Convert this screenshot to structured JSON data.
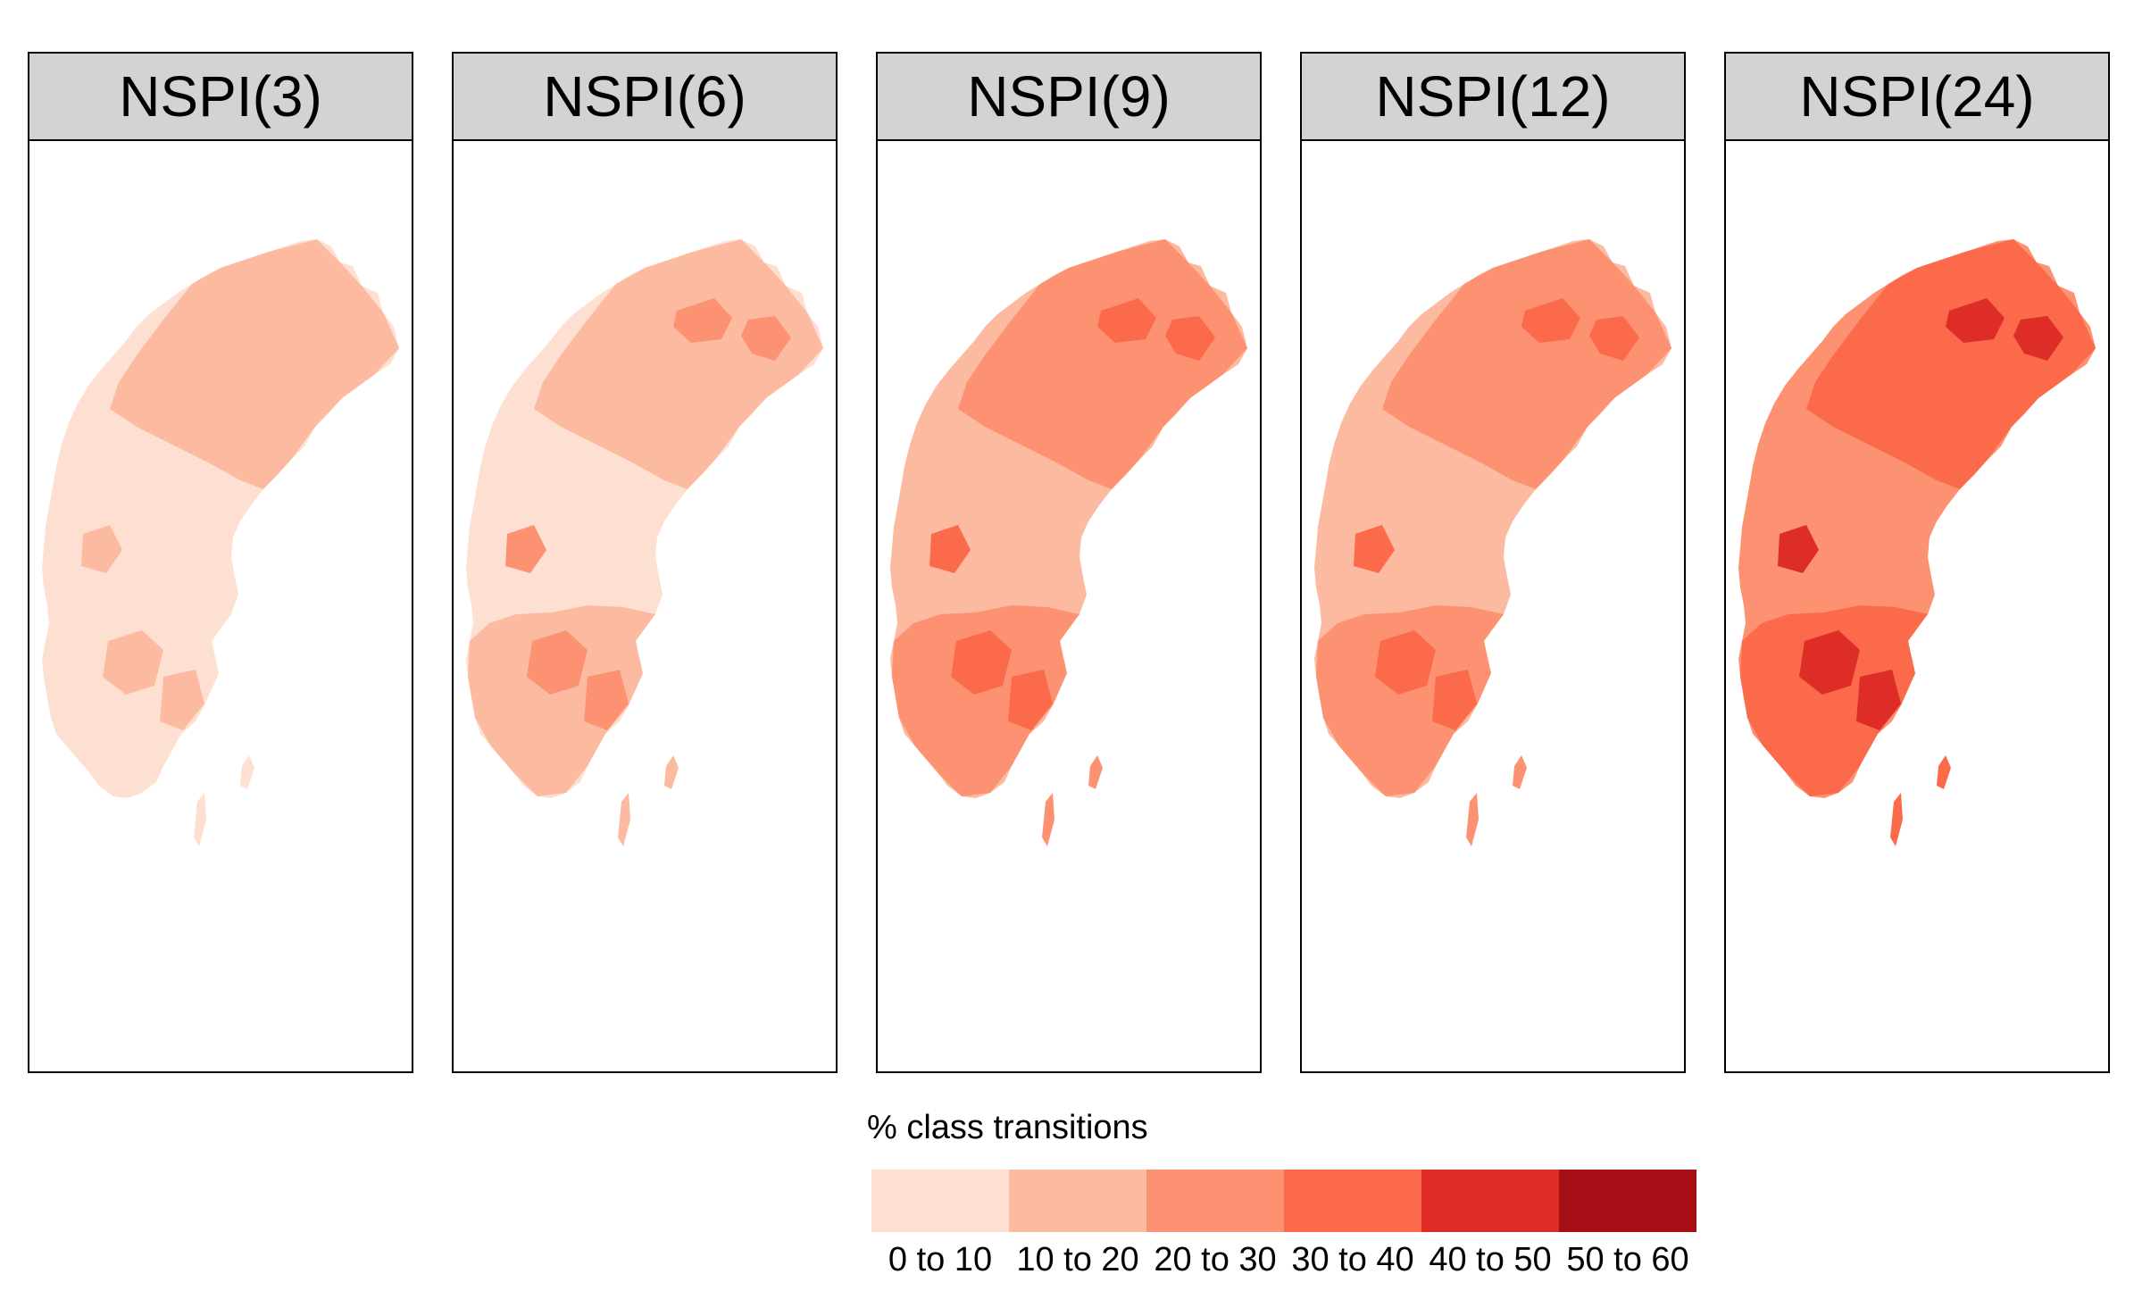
{
  "panels": [
    {
      "title": "NSPI(3)",
      "fill": {
        "north": "#fcbba1",
        "middle": "#fee0d2",
        "south": "#fee0d2",
        "southern_spots": "#fcbba1"
      }
    },
    {
      "title": "NSPI(6)",
      "fill": {
        "north": "#fcbba1",
        "middle": "#fee0d2",
        "south": "#fcbba1",
        "southern_spots": "#fc9272"
      }
    },
    {
      "title": "NSPI(9)",
      "fill": {
        "north": "#fc9272",
        "middle": "#fcbba1",
        "south": "#fc9272",
        "southern_spots": "#fb6a4a"
      }
    },
    {
      "title": "NSPI(12)",
      "fill": {
        "north": "#fc9272",
        "middle": "#fcbba1",
        "south": "#fc9272",
        "southern_spots": "#fb6a4a"
      }
    },
    {
      "title": "NSPI(24)",
      "fill": {
        "north": "#fb6a4a",
        "middle": "#fc9272",
        "south": "#fb6a4a",
        "southern_spots": "#de2d26"
      }
    }
  ],
  "legend": {
    "title": "% class transitions",
    "classes": [
      {
        "label": "0 to 10",
        "color": "#fee0d2"
      },
      {
        "label": "10 to 20",
        "color": "#fcbba1"
      },
      {
        "label": "20 to 30",
        "color": "#fc9272"
      },
      {
        "label": "30 to 40",
        "color": "#fb6a4a"
      },
      {
        "label": "40 to 50",
        "color": "#de2d26"
      },
      {
        "label": "50 to 60",
        "color": "#a50f15"
      }
    ]
  }
}
